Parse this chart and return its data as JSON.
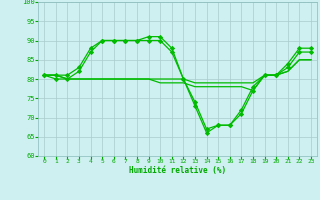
{
  "xlabel": "Humidité relative (%)",
  "background_color": "#cef0f0",
  "grid_color": "#aacccc",
  "line_color": "#00bb00",
  "text_color": "#00aa00",
  "xlim": [
    -0.5,
    23.5
  ],
  "ylim": [
    60,
    100
  ],
  "yticks": [
    60,
    65,
    70,
    75,
    80,
    85,
    90,
    95,
    100
  ],
  "xticks": [
    0,
    1,
    2,
    3,
    4,
    5,
    6,
    7,
    8,
    9,
    10,
    11,
    12,
    13,
    14,
    15,
    16,
    17,
    18,
    19,
    20,
    21,
    22,
    23
  ],
  "series": [
    {
      "x": [
        0,
        1,
        2,
        3,
        4,
        5,
        6,
        7,
        8,
        9,
        10,
        11,
        12,
        13,
        14,
        15,
        16,
        17,
        18,
        19,
        20,
        21,
        22,
        23
      ],
      "y": [
        81,
        81,
        81,
        83,
        88,
        90,
        90,
        90,
        90,
        91,
        91,
        88,
        80,
        74,
        67,
        68,
        68,
        72,
        78,
        81,
        81,
        84,
        88,
        88
      ],
      "marker": true
    },
    {
      "x": [
        0,
        1,
        2,
        3,
        4,
        5,
        6,
        7,
        8,
        9,
        10,
        11,
        12,
        13,
        14,
        15,
        16,
        17,
        18,
        19,
        20,
        21,
        22,
        23
      ],
      "y": [
        81,
        81,
        80,
        80,
        80,
        80,
        80,
        80,
        80,
        80,
        80,
        80,
        80,
        79,
        79,
        79,
        79,
        79,
        79,
        81,
        81,
        82,
        85,
        85
      ],
      "marker": false
    },
    {
      "x": [
        0,
        1,
        2,
        3,
        4,
        5,
        6,
        7,
        8,
        9,
        10,
        11,
        12,
        13,
        14,
        15,
        16,
        17,
        18,
        19,
        20,
        21,
        22,
        23
      ],
      "y": [
        81,
        80,
        80,
        82,
        87,
        90,
        90,
        90,
        90,
        90,
        90,
        87,
        80,
        73,
        66,
        68,
        68,
        71,
        77,
        81,
        81,
        83,
        87,
        87
      ],
      "marker": true
    },
    {
      "x": [
        0,
        1,
        2,
        3,
        4,
        5,
        6,
        7,
        8,
        9,
        10,
        11,
        12,
        13,
        14,
        15,
        16,
        17,
        18,
        19,
        20,
        21,
        22,
        23
      ],
      "y": [
        81,
        81,
        80,
        80,
        80,
        80,
        80,
        80,
        80,
        80,
        79,
        79,
        79,
        78,
        78,
        78,
        78,
        78,
        77,
        81,
        81,
        82,
        85,
        85
      ],
      "marker": false
    }
  ]
}
